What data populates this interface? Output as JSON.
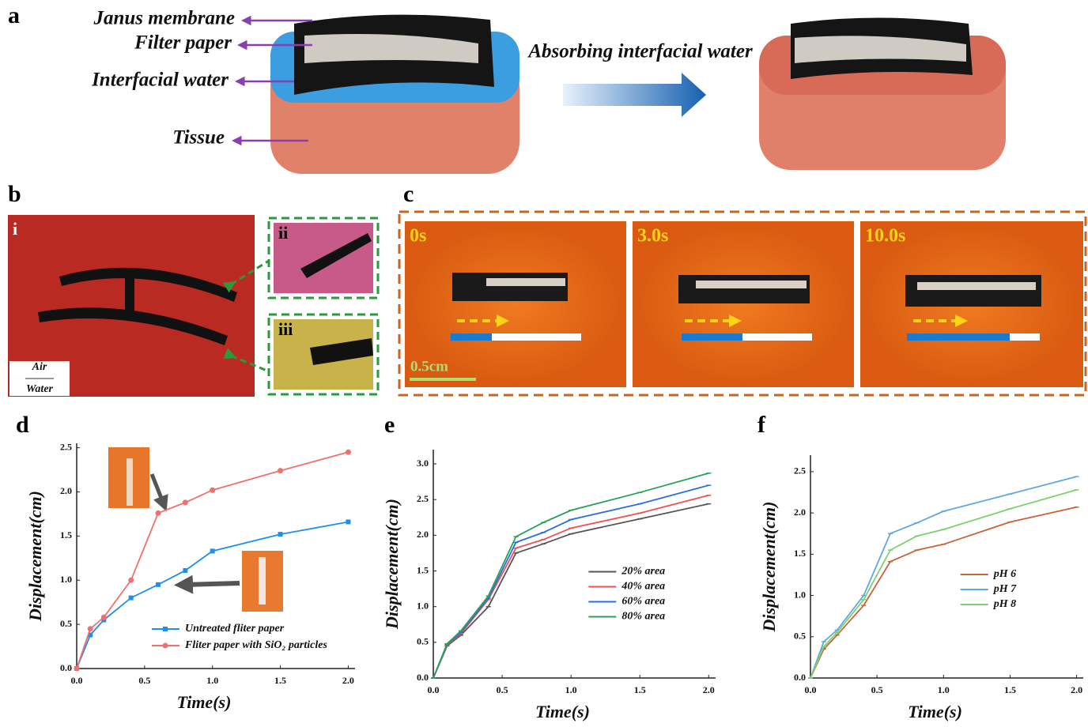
{
  "figure": {
    "panel_a": {
      "label": "a",
      "callouts": [
        "Janus membrane",
        "Filter paper",
        "Interfacial water",
        "Tissue"
      ],
      "arrow_text": "Absorbing interfacial water"
    },
    "panel_b": {
      "label": "b",
      "insets": [
        "i",
        "ii",
        "iii"
      ],
      "interface": [
        "Air",
        "Water"
      ]
    },
    "panel_c": {
      "label": "c",
      "frames": [
        "0s",
        "3.0s",
        "10.0s"
      ],
      "scale_bar": "0.5cm"
    }
  },
  "chart_data": [
    {
      "type": "line",
      "title": "d",
      "x_label": "Time(s)",
      "y_label": "Displacement(cm)",
      "legend": "lower center",
      "x": [
        0,
        0.1,
        0.2,
        0.4,
        0.6,
        0.8,
        1.0,
        1.5,
        2.0
      ],
      "xlim": [
        0,
        2.05
      ],
      "xticks": [
        {
          "value": 0,
          "label": "0.0"
        },
        {
          "value": 0.5,
          "label": "0.5"
        },
        {
          "value": 1,
          "label": "1.0"
        },
        {
          "value": 1.5,
          "label": "1.5"
        },
        {
          "value": 2,
          "label": "2.0"
        }
      ],
      "ylim": [
        0,
        2.55
      ],
      "yticks": [
        {
          "value": 0,
          "label": "0.0"
        },
        {
          "value": 0.5,
          "label": "0.5"
        },
        {
          "value": 1,
          "label": "1.0"
        },
        {
          "value": 1.5,
          "label": "1.5"
        },
        {
          "value": 2,
          "label": "2.0"
        },
        {
          "value": 2.5,
          "label": "2.5"
        }
      ],
      "series": [
        {
          "name": "Untreated fliter paper",
          "color": "#1f8fe8",
          "marker": "square",
          "values": [
            0,
            0.38,
            0.55,
            0.8,
            0.95,
            1.11,
            1.33,
            1.52,
            1.66
          ]
        },
        {
          "name": "Fliter paper with SiO₂ particles",
          "color": "#f07070",
          "marker": "circle",
          "values": [
            0,
            0.45,
            0.58,
            1.0,
            1.76,
            1.88,
            2.02,
            2.24,
            2.45
          ]
        }
      ]
    },
    {
      "type": "line",
      "title": "e",
      "x_label": "Time(s)",
      "y_label": "Displacement(cm)",
      "legend": "center right",
      "x": [
        0,
        0.1,
        0.2,
        0.4,
        0.6,
        0.8,
        1.0,
        1.5,
        2.0
      ],
      "xlim": [
        0,
        2.05
      ],
      "xticks": [
        {
          "value": 0,
          "label": "0.0"
        },
        {
          "value": 0.5,
          "label": "0.5"
        },
        {
          "value": 1,
          "label": "1.0"
        },
        {
          "value": 1.5,
          "label": "1.5"
        },
        {
          "value": 2,
          "label": "2.0"
        }
      ],
      "ylim": [
        0,
        3.2
      ],
      "yticks": [
        {
          "value": 0,
          "label": "0.0"
        },
        {
          "value": 0.5,
          "label": "0.5"
        },
        {
          "value": 1,
          "label": "1.0"
        },
        {
          "value": 1.5,
          "label": "1.5"
        },
        {
          "value": 2,
          "label": "2.0"
        },
        {
          "value": 2.5,
          "label": "2.5"
        },
        {
          "value": 3,
          "label": "3.0"
        }
      ],
      "series": [
        {
          "name": "20% area",
          "color": "#555555",
          "values": [
            0,
            0.45,
            0.6,
            1.0,
            1.75,
            1.88,
            2.02,
            2.23,
            2.44
          ]
        },
        {
          "name": "40% area",
          "color": "#f05050",
          "values": [
            0,
            0.46,
            0.62,
            1.1,
            1.82,
            1.94,
            2.1,
            2.31,
            2.56
          ]
        },
        {
          "name": "60% area",
          "color": "#2a6fe0",
          "values": [
            0,
            0.47,
            0.64,
            1.12,
            1.9,
            2.04,
            2.22,
            2.44,
            2.7
          ]
        },
        {
          "name": "80% area",
          "color": "#2aa05a",
          "values": [
            0,
            0.48,
            0.66,
            1.15,
            1.98,
            2.18,
            2.35,
            2.6,
            2.87
          ]
        }
      ]
    },
    {
      "type": "line",
      "title": "f",
      "x_label": "Time(s)",
      "y_label": "Displacement(cm)",
      "legend": "center right",
      "x": [
        0,
        0.1,
        0.2,
        0.4,
        0.6,
        0.8,
        1.0,
        1.5,
        2.0
      ],
      "xlim": [
        0,
        2.05
      ],
      "xticks": [
        {
          "value": 0,
          "label": "0.0"
        },
        {
          "value": 0.5,
          "label": "0.5"
        },
        {
          "value": 1,
          "label": "1.0"
        },
        {
          "value": 1.5,
          "label": "1.5"
        },
        {
          "value": 2,
          "label": "2.0"
        }
      ],
      "ylim": [
        0,
        2.7
      ],
      "yticks": [
        {
          "value": 0,
          "label": "0.0"
        },
        {
          "value": 0.5,
          "label": "0.5"
        },
        {
          "value": 1,
          "label": "1.0"
        },
        {
          "value": 1.5,
          "label": "1.5"
        },
        {
          "value": 2,
          "label": "2.0"
        },
        {
          "value": 2.5,
          "label": "2.5"
        }
      ],
      "series": [
        {
          "name": "pH 6",
          "color": "#c8643c",
          "values": [
            0,
            0.35,
            0.52,
            0.88,
            1.41,
            1.55,
            1.62,
            1.89,
            2.07
          ]
        },
        {
          "name": "pH 7",
          "color": "#5fa8e0",
          "values": [
            0,
            0.44,
            0.58,
            1.0,
            1.75,
            1.88,
            2.02,
            2.23,
            2.44
          ]
        },
        {
          "name": "pH 8",
          "color": "#7ed06e",
          "values": [
            0,
            0.38,
            0.55,
            0.95,
            1.55,
            1.72,
            1.8,
            2.05,
            2.28
          ]
        }
      ]
    }
  ]
}
